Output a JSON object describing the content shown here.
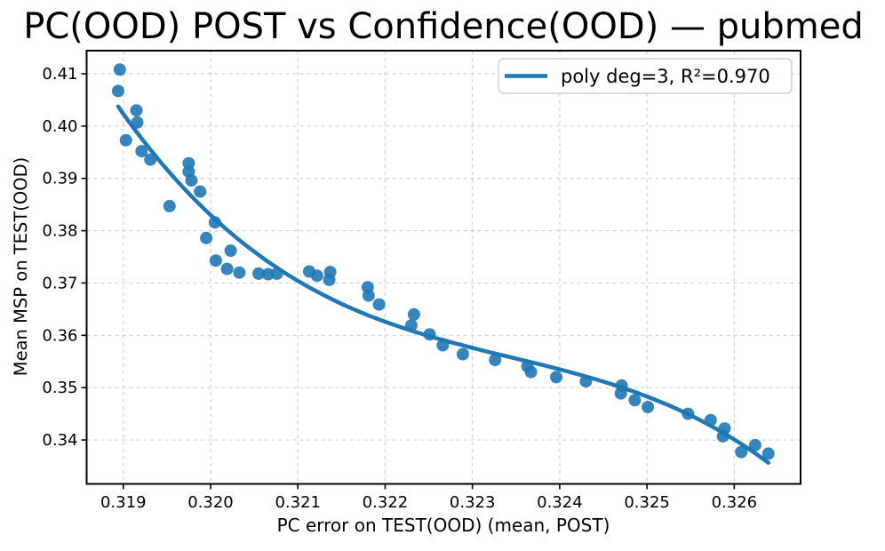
{
  "chart_data": {
    "type": "scatter",
    "title": "PC(OOD) POST vs Confidence(OOD) — pubmed",
    "xlabel": "PC error on TEST(OOD) (mean, POST)",
    "ylabel": "Mean MSP on TEST(OOD)",
    "grid": true,
    "xlim": [
      0.31858,
      0.32676
    ],
    "ylim": [
      0.3316,
      0.41442
    ],
    "x_ticks": [
      0.319,
      0.32,
      0.321,
      0.322,
      0.323,
      0.324,
      0.325,
      0.326
    ],
    "x_tick_labels": [
      "0.319",
      "0.320",
      "0.321",
      "0.322",
      "0.323",
      "0.324",
      "0.325",
      "0.326"
    ],
    "y_ticks": [
      0.34,
      0.35,
      0.36,
      0.37,
      0.38,
      0.39,
      0.4,
      0.41
    ],
    "y_tick_labels": [
      "0.34",
      "0.35",
      "0.36",
      "0.37",
      "0.38",
      "0.39",
      "0.40",
      "0.41"
    ],
    "legend": {
      "position": "upper right",
      "entries": [
        {
          "label": "poly deg=3, R²=0.970",
          "color": "#1f77b4",
          "style": "line"
        }
      ]
    },
    "series": [
      {
        "name": "scatter-points",
        "type": "scatter",
        "color": "#1f77b4",
        "points": [
          [
            0.31896,
            0.4108
          ],
          [
            0.31894,
            0.4067
          ],
          [
            0.31915,
            0.403
          ],
          [
            0.31916,
            0.4007
          ],
          [
            0.31903,
            0.3973
          ],
          [
            0.31921,
            0.3952
          ],
          [
            0.31931,
            0.3936
          ],
          [
            0.31975,
            0.3929
          ],
          [
            0.31975,
            0.3913
          ],
          [
            0.31978,
            0.3896
          ],
          [
            0.31988,
            0.3875
          ],
          [
            0.31953,
            0.3847
          ],
          [
            0.32005,
            0.3816
          ],
          [
            0.31995,
            0.3786
          ],
          [
            0.32023,
            0.3762
          ],
          [
            0.32006,
            0.3743
          ],
          [
            0.32019,
            0.3727
          ],
          [
            0.32033,
            0.372
          ],
          [
            0.32055,
            0.3718
          ],
          [
            0.32066,
            0.3717
          ],
          [
            0.32076,
            0.3718
          ],
          [
            0.32113,
            0.3722
          ],
          [
            0.32122,
            0.3714
          ],
          [
            0.32137,
            0.3721
          ],
          [
            0.32136,
            0.3706
          ],
          [
            0.3218,
            0.3692
          ],
          [
            0.32181,
            0.3676
          ],
          [
            0.32193,
            0.3659
          ],
          [
            0.32233,
            0.364
          ],
          [
            0.3223,
            0.3619
          ],
          [
            0.32251,
            0.3602
          ],
          [
            0.32266,
            0.3581
          ],
          [
            0.32289,
            0.3564
          ],
          [
            0.32326,
            0.3553
          ],
          [
            0.32363,
            0.3541
          ],
          [
            0.32367,
            0.353
          ],
          [
            0.32396,
            0.352
          ],
          [
            0.3243,
            0.3512
          ],
          [
            0.32471,
            0.3504
          ],
          [
            0.3247,
            0.3489
          ],
          [
            0.32486,
            0.3476
          ],
          [
            0.32501,
            0.3463
          ],
          [
            0.32547,
            0.345
          ],
          [
            0.32573,
            0.3438
          ],
          [
            0.32589,
            0.3422
          ],
          [
            0.32587,
            0.3407
          ],
          [
            0.32624,
            0.339
          ],
          [
            0.32608,
            0.3377
          ],
          [
            0.32639,
            0.3374
          ]
        ]
      },
      {
        "name": "poly-fit",
        "type": "cubic-fit",
        "degree": 3,
        "r_squared": 0.97,
        "color": "#1f77b4",
        "label": "poly deg=3, R²=0.970"
      }
    ],
    "colors": {
      "dots": "#1f77b4",
      "fit_line": "#1f77b4",
      "grid": "#cccccc",
      "spine": "#000000",
      "background": "#ffffff"
    }
  }
}
